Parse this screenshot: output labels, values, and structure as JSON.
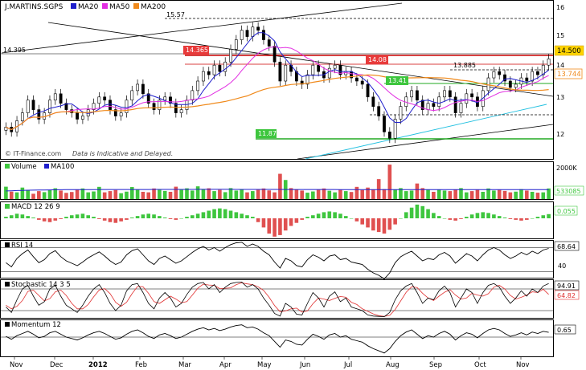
{
  "header": {
    "symbol": "J.MARTINS.SGPS",
    "legend": [
      {
        "label": "MA20",
        "color": "#1f1fcc"
      },
      {
        "label": "MA50",
        "color": "#e22ee2"
      },
      {
        "label": "MA200",
        "color": "#f08a1c"
      }
    ]
  },
  "watermark": "© IT-Finance.com",
  "disclaimer": "Data is Indicative and Delayed.",
  "chart_data": [
    {
      "type": "candlestick",
      "ylim": [
        11.4,
        16.2
      ],
      "y_ticks": [
        12,
        13,
        14,
        15,
        16
      ],
      "x_ticks": [
        "Nov",
        "Dec",
        "2012",
        "Feb",
        "Mar",
        "Apr",
        "May",
        "Jun",
        "Jul",
        "Aug",
        "Sep",
        "Oct",
        "Nov"
      ],
      "annotations": {
        "high_level": "15.57",
        "resistance_left": "14.395",
        "box_14365": "14.365",
        "box_1408": "14.08",
        "box_13885": "13.885",
        "box_1341": "13.41",
        "box_1187": "11.87",
        "last_price": "14.500",
        "ma_value": "13.744"
      },
      "close": [
        12.35,
        12.2,
        12.55,
        12.8,
        13.2,
        12.9,
        12.6,
        12.8,
        13.2,
        13.4,
        13.1,
        12.9,
        12.8,
        12.6,
        12.7,
        12.9,
        13.1,
        13.3,
        13.2,
        12.9,
        12.7,
        12.8,
        13.2,
        13.5,
        13.7,
        13.4,
        13.1,
        12.9,
        13.2,
        13.3,
        13.1,
        12.8,
        12.9,
        13.2,
        13.5,
        13.8,
        14.1,
        14.0,
        14.3,
        14.1,
        14.4,
        14.8,
        15.1,
        15.4,
        15.2,
        15.5,
        15.4,
        15.1,
        14.9,
        14.4,
        13.8,
        14.3,
        14.1,
        13.8,
        13.7,
        14.0,
        14.3,
        14.1,
        13.9,
        14.2,
        14.3,
        14.0,
        14.1,
        13.9,
        13.8,
        13.7,
        13.3,
        13.0,
        12.7,
        12.2,
        12.0,
        12.6,
        13.0,
        13.3,
        13.5,
        13.2,
        12.9,
        13.1,
        13.0,
        13.3,
        13.5,
        13.3,
        12.8,
        13.1,
        13.4,
        13.3,
        13.0,
        13.5,
        13.9,
        14.1,
        14.0,
        13.8,
        13.6,
        13.7,
        13.9,
        13.8,
        14.1,
        14.0,
        14.3,
        14.5
      ]
    },
    {
      "type": "bar",
      "title": "Volume",
      "series_label": "MA100",
      "y_ticks": [
        "2000K"
      ],
      "last_value": "533085",
      "values": [
        700,
        420,
        380,
        650,
        520,
        300,
        450,
        390,
        520,
        610,
        480,
        350,
        400,
        520,
        600,
        380,
        430,
        690,
        380,
        450,
        510,
        330,
        420,
        680,
        520,
        410,
        380,
        600,
        520,
        460,
        410,
        700,
        520,
        610,
        480,
        720,
        560,
        610,
        450,
        520,
        390,
        620,
        480,
        530,
        380,
        450,
        520,
        600,
        490,
        380,
        1430,
        1080,
        620,
        540,
        480,
        360,
        430,
        520,
        600,
        470,
        380,
        520,
        450,
        400,
        690,
        510,
        650,
        540,
        1130,
        560,
        1950,
        540,
        620,
        450,
        480,
        880,
        620,
        520,
        410,
        540,
        480,
        450,
        540,
        620,
        380,
        450,
        520,
        410,
        600,
        480,
        520,
        460,
        380,
        420,
        560,
        480,
        410,
        360,
        380,
        600
      ],
      "ma": [
        460,
        470,
        480,
        490,
        500,
        505,
        510,
        515,
        520,
        525,
        528,
        530,
        532,
        534,
        536,
        537,
        538,
        539,
        540,
        540,
        540,
        540,
        540,
        541,
        542,
        543,
        543,
        544,
        544,
        545,
        545,
        546,
        546,
        547,
        547,
        548,
        548,
        548,
        548,
        548,
        548,
        548,
        547,
        547,
        546,
        546,
        545,
        545,
        544,
        544,
        544,
        543,
        543,
        542,
        542,
        541,
        541,
        540,
        540,
        539,
        539,
        538,
        538,
        537,
        537,
        536,
        536,
        536,
        535,
        535,
        535,
        535,
        534,
        534,
        534,
        534,
        534,
        534,
        534,
        534,
        534,
        534,
        533,
        533,
        533,
        533,
        533,
        533,
        533,
        533,
        533,
        533,
        533,
        533,
        533,
        533,
        533,
        533,
        533,
        533
      ]
    },
    {
      "type": "bar",
      "title": "MACD 12 26 9",
      "last_value": "0.055",
      "values": [
        0.02,
        0.04,
        0.06,
        0.05,
        0.03,
        0.01,
        -0.02,
        -0.04,
        -0.05,
        -0.03,
        -0.01,
        0.02,
        0.04,
        0.05,
        0.06,
        0.04,
        0.02,
        -0.01,
        -0.03,
        -0.05,
        -0.06,
        -0.04,
        -0.02,
        0.01,
        0.03,
        0.05,
        0.06,
        0.05,
        0.03,
        0.01,
        -0.01,
        -0.02,
        0.0,
        0.02,
        0.04,
        0.06,
        0.08,
        0.1,
        0.12,
        0.13,
        0.12,
        0.1,
        0.08,
        0.06,
        0.04,
        0.02,
        -0.05,
        -0.12,
        -0.2,
        -0.24,
        -0.22,
        -0.16,
        -0.1,
        -0.06,
        -0.02,
        0.02,
        0.04,
        0.06,
        0.08,
        0.09,
        0.08,
        0.06,
        0.03,
        0.0,
        -0.04,
        -0.08,
        -0.12,
        -0.16,
        -0.18,
        -0.2,
        -0.15,
        -0.08,
        0.0,
        0.08,
        0.14,
        0.18,
        0.16,
        0.12,
        0.07,
        0.03,
        0.0,
        -0.02,
        -0.03,
        -0.01,
        0.02,
        0.05,
        0.07,
        0.08,
        0.07,
        0.05,
        0.03,
        0.01,
        -0.01,
        -0.02,
        -0.03,
        -0.02,
        0.0,
        0.02,
        0.04,
        0.055
      ]
    },
    {
      "type": "line",
      "title": "RSI 14",
      "ylim": [
        20,
        80
      ],
      "y_ticks": [
        40
      ],
      "last_value": "68.64",
      "values": [
        45,
        38,
        52,
        60,
        66,
        55,
        45,
        50,
        60,
        65,
        55,
        48,
        44,
        40,
        46,
        53,
        58,
        63,
        56,
        48,
        42,
        46,
        58,
        65,
        68,
        58,
        48,
        42,
        52,
        56,
        50,
        44,
        48,
        55,
        62,
        68,
        72,
        66,
        70,
        64,
        70,
        75,
        78,
        79,
        72,
        76,
        72,
        64,
        58,
        46,
        36,
        52,
        48,
        40,
        38,
        50,
        58,
        54,
        48,
        56,
        58,
        50,
        52,
        46,
        44,
        42,
        34,
        28,
        24,
        18,
        28,
        45,
        55,
        60,
        64,
        56,
        48,
        52,
        50,
        58,
        62,
        56,
        44,
        52,
        60,
        56,
        48,
        58,
        66,
        70,
        66,
        58,
        52,
        56,
        62,
        58,
        64,
        60,
        66,
        68.64
      ]
    },
    {
      "type": "line",
      "title": "Stochastic 14 3 5",
      "ylim": [
        0,
        100
      ],
      "last_values": [
        "94.91",
        "64.82"
      ],
      "k": [
        30,
        15,
        50,
        80,
        90,
        60,
        35,
        45,
        80,
        90,
        60,
        35,
        25,
        15,
        35,
        60,
        80,
        92,
        70,
        40,
        20,
        35,
        75,
        92,
        95,
        70,
        40,
        25,
        55,
        70,
        55,
        30,
        40,
        65,
        85,
        95,
        98,
        80,
        92,
        70,
        85,
        95,
        98,
        99,
        85,
        92,
        80,
        55,
        35,
        12,
        5,
        40,
        30,
        10,
        8,
        40,
        70,
        55,
        30,
        60,
        72,
        45,
        55,
        30,
        25,
        20,
        8,
        5,
        4,
        3,
        15,
        50,
        75,
        88,
        95,
        70,
        40,
        55,
        50,
        75,
        88,
        70,
        30,
        55,
        80,
        70,
        40,
        70,
        90,
        95,
        85,
        60,
        40,
        55,
        75,
        60,
        80,
        70,
        88,
        94.91
      ],
      "d": [
        35,
        25,
        32,
        48,
        73,
        77,
        62,
        47,
        53,
        72,
        77,
        62,
        40,
        25,
        25,
        37,
        58,
        77,
        81,
        67,
        43,
        32,
        43,
        67,
        87,
        86,
        68,
        45,
        40,
        50,
        60,
        52,
        42,
        45,
        63,
        82,
        93,
        91,
        90,
        81,
        82,
        83,
        92,
        97,
        94,
        92,
        86,
        76,
        57,
        34,
        17,
        19,
        25,
        27,
        16,
        19,
        39,
        55,
        52,
        48,
        54,
        59,
        57,
        43,
        37,
        25,
        18,
        11,
        6,
        4,
        7,
        23,
        47,
        71,
        86,
        84,
        68,
        55,
        48,
        60,
        71,
        78,
        63,
        52,
        55,
        68,
        63,
        60,
        67,
        85,
        90,
        80,
        62,
        52,
        57,
        63,
        72,
        70,
        79,
        64.82
      ]
    },
    {
      "type": "line",
      "title": "Momentum 12",
      "last_value": "0.65",
      "values": [
        0.1,
        -0.3,
        0.2,
        0.5,
        0.8,
        0.4,
        -0.1,
        0.1,
        0.6,
        0.8,
        0.4,
        0.0,
        -0.2,
        -0.4,
        -0.1,
        0.3,
        0.6,
        0.8,
        0.5,
        0.1,
        -0.3,
        -0.1,
        0.4,
        0.8,
        1.0,
        0.6,
        0.1,
        -0.2,
        0.3,
        0.5,
        0.2,
        -0.2,
        0.0,
        0.4,
        0.8,
        1.1,
        1.3,
        1.0,
        1.2,
        0.9,
        1.1,
        1.4,
        1.6,
        1.7,
        1.3,
        1.4,
        1.1,
        0.6,
        0.2,
        -0.6,
        -1.4,
        -0.4,
        -0.6,
        -1.0,
        -1.1,
        -0.3,
        0.4,
        0.1,
        -0.3,
        0.3,
        0.5,
        0.0,
        0.2,
        -0.3,
        -0.5,
        -0.7,
        -1.2,
        -1.6,
        -1.9,
        -2.2,
        -1.6,
        -0.6,
        0.2,
        0.7,
        1.0,
        0.4,
        -0.2,
        0.2,
        0.0,
        0.5,
        0.8,
        0.4,
        -0.4,
        0.2,
        0.6,
        0.4,
        -0.1,
        0.5,
        1.0,
        1.2,
        1.0,
        0.5,
        0.1,
        0.3,
        0.6,
        0.3,
        0.7,
        0.5,
        0.8,
        0.65
      ]
    }
  ]
}
